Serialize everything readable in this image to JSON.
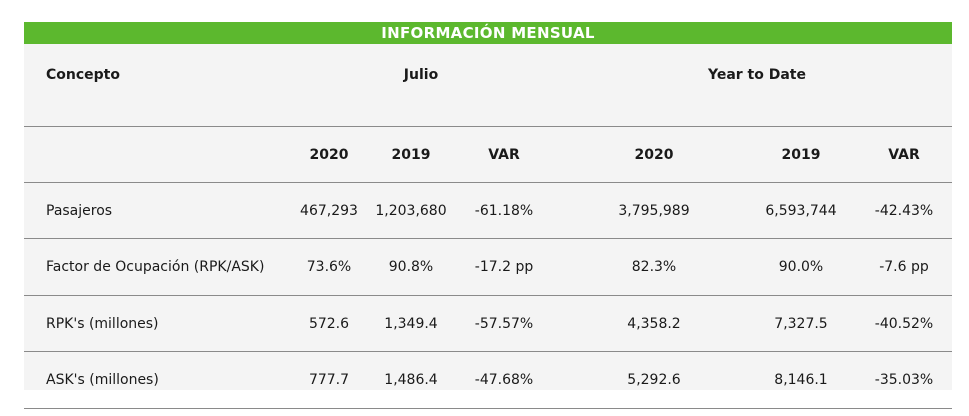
{
  "title": "INFORMACIÓN MENSUAL",
  "header": {
    "concepto": "Concepto",
    "julio": "Julio",
    "ytd": "Year to Date"
  },
  "subheader": {
    "m2020": "2020",
    "m2019": "2019",
    "mvar": "VAR",
    "y2020": "2020",
    "y2019": "2019",
    "yvar": "VAR"
  },
  "rows": [
    {
      "concepto": "Pasajeros",
      "m2020": "467,293",
      "m2019": "1,203,680",
      "mvar": "-61.18%",
      "y2020": "3,795,989",
      "y2019": "6,593,744",
      "yvar": "-42.43%"
    },
    {
      "concepto": "Factor de Ocupación (RPK/ASK)",
      "m2020": "73.6%",
      "m2019": "90.8%",
      "mvar": "-17.2 pp",
      "y2020": "82.3%",
      "y2019": "90.0%",
      "yvar": "-7.6 pp"
    },
    {
      "concepto": "RPK's (millones)",
      "m2020": "572.6",
      "m2019": "1,349.4",
      "mvar": "-57.57%",
      "y2020": "4,358.2",
      "y2019": "7,327.5",
      "yvar": "-40.52%"
    },
    {
      "concepto": "ASK's (millones)",
      "m2020": "777.7",
      "m2019": "1,486.4",
      "mvar": "-47.68%",
      "y2020": "5,292.6",
      "y2019": "8,146.1",
      "yvar": "-35.03%"
    }
  ],
  "colors": {
    "title_bg": "#5cb82e",
    "panel_bg": "#f4f4f4",
    "rule": "#8a8a8a"
  }
}
